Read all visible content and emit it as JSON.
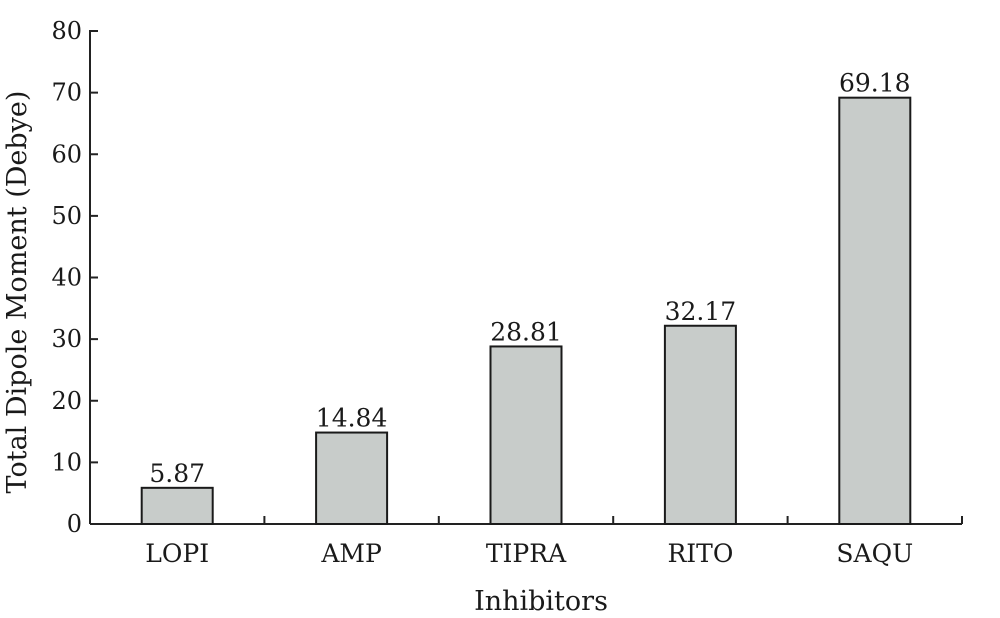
{
  "chart_data": {
    "type": "bar",
    "categories": [
      "LOPI",
      "AMP",
      "TIPRA",
      "RITO",
      "SAQU"
    ],
    "values": [
      5.87,
      14.84,
      28.81,
      32.17,
      69.18
    ],
    "data_labels": [
      "5.87",
      "14.84",
      "28.81",
      "32.17",
      "69.18"
    ],
    "title": "",
    "xlabel": "Inhibitors",
    "ylabel": "Total Dipole Moment (Debye)",
    "ylim": [
      0,
      80
    ],
    "yticks": [
      0,
      10,
      20,
      30,
      40,
      50,
      60,
      70,
      80
    ],
    "grid": false,
    "legend": "none",
    "colors": {
      "bar_fill": "#c8ccca",
      "bar_stroke": "#1a1a1a",
      "axis": "#222222"
    }
  }
}
